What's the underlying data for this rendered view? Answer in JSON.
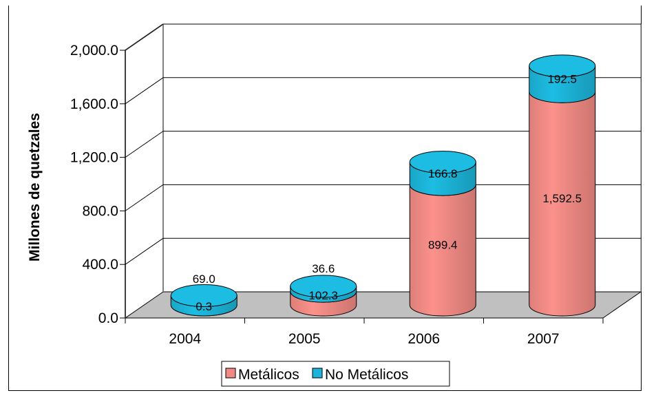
{
  "chart_data": {
    "type": "bar",
    "stacked": true,
    "three_d": true,
    "bar_shape": "cylinder",
    "ylabel": "Millones de quetzales",
    "xlabel": "",
    "ylim": [
      0,
      2000
    ],
    "y_ticks": [
      "0.0",
      "400.0",
      "800.0",
      "1,200.0",
      "1,600.0",
      "2,000.0"
    ],
    "y_tick_values": [
      0,
      400,
      800,
      1200,
      1600,
      2000
    ],
    "categories": [
      "2004",
      "2005",
      "2006",
      "2007"
    ],
    "series": [
      {
        "name": "Metálicos",
        "color": "#f08a84",
        "values": [
          0.3,
          102.3,
          899.4,
          1592.5
        ],
        "labels": [
          "0.3",
          "102.3",
          "899.4",
          "1,592.5"
        ]
      },
      {
        "name": "No Metálicos",
        "color": "#1cb4d8",
        "values": [
          69.0,
          36.6,
          166.8,
          192.5
        ],
        "labels": [
          "69.0",
          "36.6",
          "166.8",
          "192.5"
        ]
      }
    ],
    "gridlines": true,
    "legend_position": "bottom",
    "floor_color": "#c0c0c0"
  }
}
